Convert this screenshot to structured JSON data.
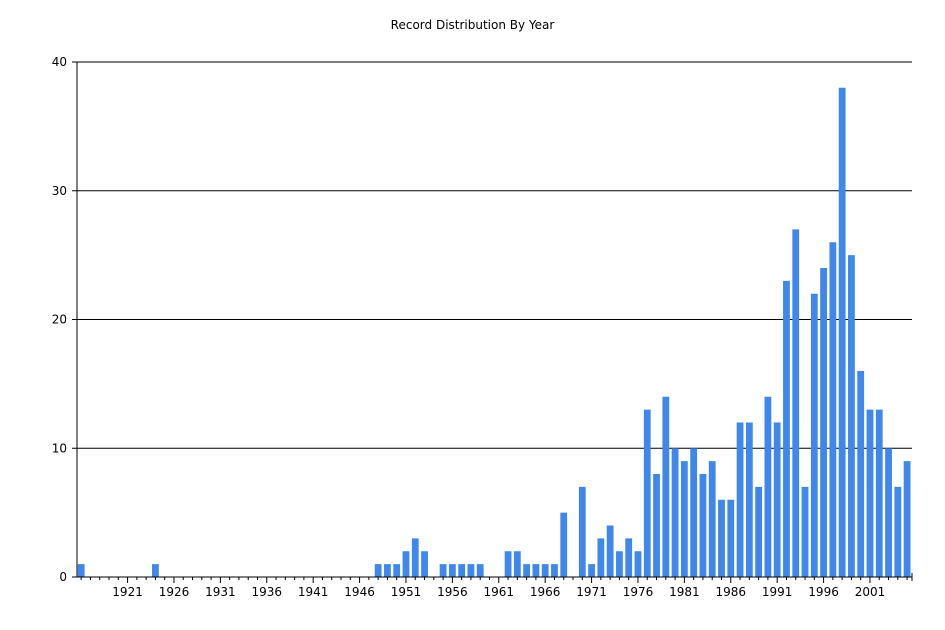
{
  "chart_data": {
    "type": "bar",
    "title": "Record Distribution By Year",
    "xlabel": "",
    "ylabel": "",
    "ylim": [
      0,
      40
    ],
    "yticks": [
      0,
      10,
      20,
      30,
      40
    ],
    "xtick_labels": [
      "1921",
      "1926",
      "1931",
      "1936",
      "1941",
      "1946",
      "1951",
      "1956",
      "1961",
      "1966",
      "1971",
      "1976",
      "1981",
      "1986",
      "1991",
      "1996",
      "2001"
    ],
    "x_range": [
      1916,
      2005
    ],
    "grid": "horizontal",
    "bar_color": "#3f87ea",
    "x": [
      1916,
      1924,
      1948,
      1949,
      1950,
      1951,
      1952,
      1953,
      1955,
      1956,
      1957,
      1958,
      1959,
      1962,
      1963,
      1964,
      1965,
      1966,
      1967,
      1968,
      1970,
      1971,
      1972,
      1973,
      1974,
      1975,
      1976,
      1977,
      1978,
      1979,
      1980,
      1981,
      1982,
      1983,
      1984,
      1985,
      1986,
      1987,
      1988,
      1989,
      1990,
      1991,
      1992,
      1993,
      1994,
      1995,
      1996,
      1997,
      1998,
      1999,
      2000,
      2001,
      2002,
      2003,
      2004,
      2005
    ],
    "values": [
      1,
      1,
      1,
      1,
      1,
      2,
      3,
      2,
      1,
      1,
      1,
      1,
      1,
      2,
      2,
      1,
      1,
      1,
      1,
      5,
      7,
      1,
      3,
      4,
      2,
      3,
      2,
      13,
      8,
      14,
      10,
      9,
      10,
      8,
      9,
      6,
      6,
      12,
      12,
      7,
      14,
      12,
      23,
      27,
      7,
      22,
      24,
      26,
      38,
      25,
      16,
      13,
      13,
      10,
      7,
      9
    ]
  }
}
